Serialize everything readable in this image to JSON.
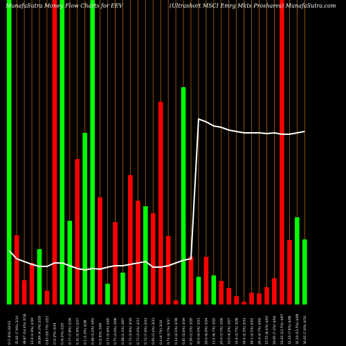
{
  "chart_data": {
    "type": "bar",
    "title_left": "MunafaSutra  Money Flow  Charts for EEV",
    "title_right": "(Ultrashort MSCI Emrg Mkts Proshares) MunafaSutra.com",
    "colors": {
      "background": "#000000",
      "up": "#00ff00",
      "down": "#ff0000",
      "grid": "#b8650b",
      "line": "#ffffff"
    },
    "grid": true,
    "ylim": [
      0,
      440
    ],
    "categories": [
      "13 Fri Feb 2025",
      "14 Fri Feb 2025",
      "18 Tue Feb 2025",
      "19 Wed Feb 2025",
      "20 Thu Feb 2025",
      "21 Fri Feb 2025",
      "24 Mon Feb 2025",
      "25 Tue Feb 2025",
      "26 Wed Feb 2025",
      "27 Thu Feb 2025",
      "28 Fri Feb 2025",
      "03 Mon Mar 2025",
      "04 Tue Mar 2025",
      "05 Wed Mar 2025",
      "06 Thu Mar 2025",
      "07 Fri Mar 2025",
      "10 Mon Mar 2025",
      "11 Tue Mar 2025",
      "12 Wed Mar 2025",
      "13 Thu Mar 2025",
      "14 Fri Mar 2025",
      "17 Mon Mar 2025",
      "18 Tue Mar 2025",
      "19 Wed Mar 2025",
      "20 Thu Mar 2025",
      "21 Fri Mar 2025",
      "24 Mon Mar 2025",
      "25 Tue Mar 2025",
      "26 Wed Mar 2025",
      "27 Thu Mar 2025",
      "28 Fri Mar 2025",
      "31 Mon Mar 2025",
      "01 Tue Apr 2025",
      "02 Wed Apr 2025",
      "03 Thu Apr 2025",
      "04 Fri Apr 2025",
      "07 Mon Apr 2025",
      "08 Tue Apr 2025",
      "09 Wed Apr 2025",
      "10 Thu Apr 2025"
    ],
    "x_labels": [
      "0 (7.8%) 02/13",
      "35.91 (7.9%) 2/14",
      "38.87 (14.4%) 2/18",
      "13.0 (1.9%) 2/19",
      "36.84 (4.3%) 2/20",
      "0.63 (10.7%) 2/21",
      "0 (2.2%) 2/24",
      "0 (4.2%) 2/25",
      "0.77 (7.8%) 2/26",
      "0.31 (2.9%) 2/27",
      "0.1 (1.2%) 2/28",
      "0.48 (3.2%) 3/03",
      "0 (2.6%) 3/04",
      "0.73 (5.6%) 3/05",
      "0.75 (3.0%) 3/06",
      "0.48 (1.3%) 3/07",
      "0.72 (2.8%) 3/10",
      "0.73 (3.2%) 3/11",
      "0.72 (7.9%) 3/12",
      "0.04 (3.4%) 3/13",
      "0.4 (4.7%) 3/14",
      "0.73 (4.7%) 3/17",
      "0.14 (2.1%) 3/18",
      "0.65 (2.6%) 3/19",
      "0.39 (3.1%) 3/20",
      "35.0 (4.5%) 3/21",
      "20.0 (6.0%) 3/24",
      "13.0 (6.7%) 3/25",
      "20.4 (3.7%) 3/26",
      "33.0 (4.2%) 3/27",
      "31.6 (3.7%) 3/28",
      "34.0 (5.3%) 3/31",
      "18.1 (2.1%) 4/01",
      "26.4 (4.7%) 4/02",
      "15.55 (6.4%) 4/03",
      "20.95 (7.2%) 4/04",
      "22.02 (12.5%) 4/07",
      "32.19 (7.8%) 4/08",
      "35.19 (13.5%) 4/09",
      "34.02 (7.6%) 4/10"
    ],
    "series": [
      {
        "values": [
          440,
          100,
          35,
          60,
          80,
          20,
          440,
          440,
          121,
          210,
          248,
          440,
          155,
          30,
          119,
          46,
          187,
          150,
          142,
          132,
          293,
          99,
          6,
          314,
          69,
          40,
          69,
          42,
          34,
          24,
          12,
          4,
          17,
          16,
          25,
          38,
          440,
          93,
          126,
          94
        ],
        "direction": [
          "up",
          "down",
          "down",
          "down",
          "up",
          "down",
          "down",
          "up",
          "up",
          "down",
          "up",
          "up",
          "down",
          "up",
          "down",
          "up",
          "down",
          "down",
          "up",
          "down",
          "down",
          "down",
          "down",
          "up",
          "down",
          "up",
          "down",
          "up",
          "down",
          "down",
          "down",
          "down",
          "down",
          "down",
          "down",
          "down",
          "down",
          "down",
          "up",
          "up"
        ]
      }
    ],
    "line": {
      "values": [
        78,
        66,
        62,
        58,
        55,
        55,
        60,
        60,
        56,
        52,
        50,
        52,
        51,
        54,
        56,
        56,
        58,
        60,
        62,
        54,
        54,
        56,
        60,
        64,
        66,
        268,
        264,
        258,
        256,
        252,
        250,
        248,
        248,
        248,
        247,
        248,
        246,
        246,
        248,
        250
      ]
    }
  }
}
